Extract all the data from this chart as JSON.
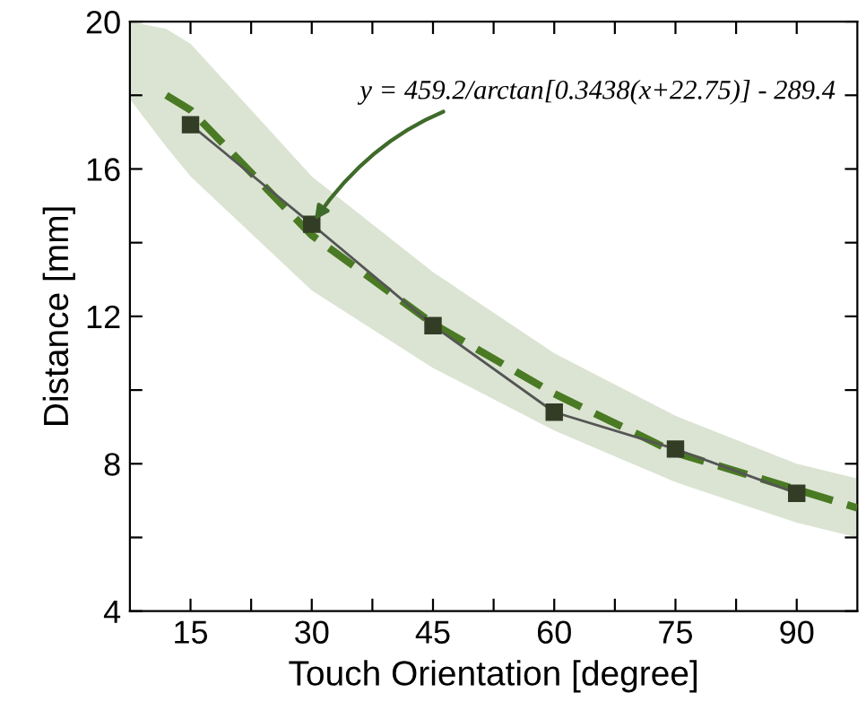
{
  "chart_data": {
    "type": "line",
    "xlabel": "Touch Orientation [degree]",
    "ylabel": "Distance [mm]",
    "xlim": [
      7.5,
      97.5
    ],
    "xticks": [
      {
        "value": 15,
        "label": "15"
      },
      {
        "value": 22.5,
        "label": null
      },
      {
        "value": 30,
        "label": "30"
      },
      {
        "value": 37.5,
        "label": null
      },
      {
        "value": 45,
        "label": "45"
      },
      {
        "value": 52.5,
        "label": null
      },
      {
        "value": 60,
        "label": "60"
      },
      {
        "value": 67.5,
        "label": null
      },
      {
        "value": 75,
        "label": "75"
      },
      {
        "value": 82.5,
        "label": null
      },
      {
        "value": 90,
        "label": "90"
      }
    ],
    "ylim": [
      4,
      20
    ],
    "yticks": [
      4,
      {
        "value": 6,
        "label": null
      },
      8,
      {
        "value": 10,
        "label": null
      },
      12,
      {
        "value": 14,
        "label": null
      },
      16,
      {
        "value": 18,
        "label": null
      },
      20
    ],
    "grid": false,
    "legend": false,
    "annotations": [
      {
        "text": "y = 459.2/arctan[0.3438(x+22.75)] - 289.4",
        "x": 30,
        "y": 14.5
      }
    ],
    "series": [
      {
        "color": "#4a7a23",
        "line_style": "dashed",
        "marker": "none",
        "x": [
          7.5,
          12,
          15,
          30,
          45,
          60,
          75,
          90,
          97.5
        ],
        "values": [
          null,
          18.0,
          17.6,
          14.2,
          11.8,
          9.9,
          8.3,
          7.3,
          6.8
        ],
        "lower": [
          17.9,
          16.6,
          15.8,
          12.7,
          10.6,
          8.9,
          7.5,
          6.4,
          6.0
        ],
        "upper": [
          20,
          19.8,
          19.4,
          15.8,
          13.2,
          11.0,
          9.3,
          8.0,
          7.6
        ]
      },
      {
        "color": "#333d26",
        "line_style": "solid",
        "marker": "square",
        "x": [
          15,
          30,
          45,
          60,
          75,
          90
        ],
        "values": [
          17.2,
          14.5,
          11.75,
          9.4,
          8.4,
          7.2
        ]
      }
    ]
  }
}
